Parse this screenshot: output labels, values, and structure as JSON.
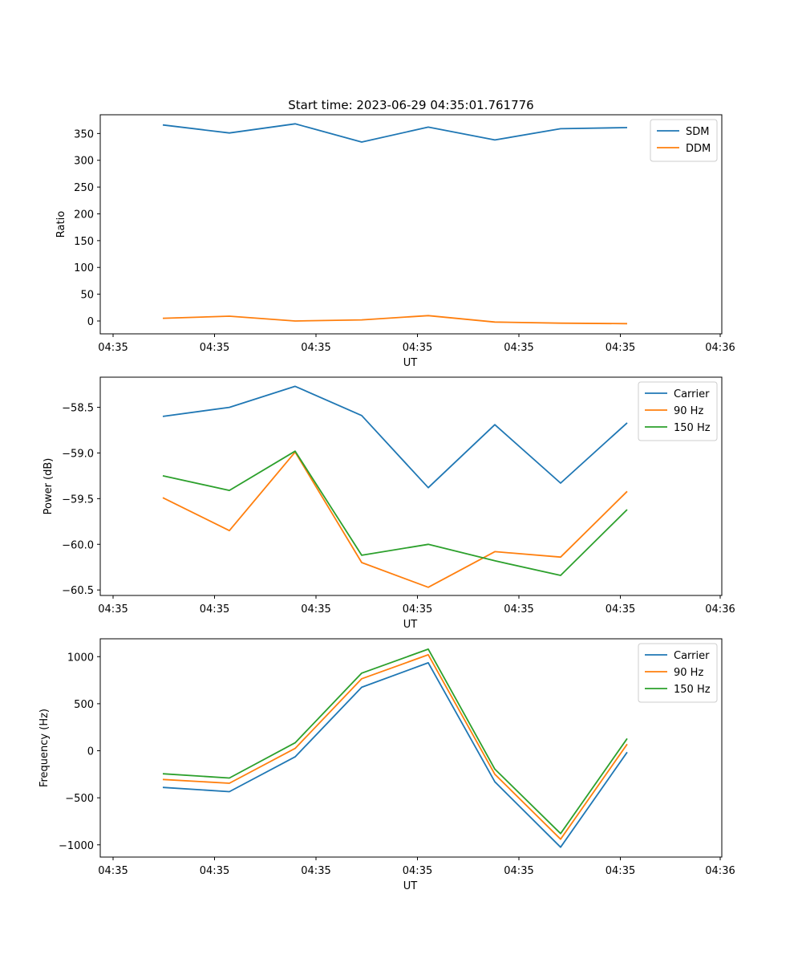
{
  "figure": {
    "title": "Start time: 2023-06-29 04:35:01.761776"
  },
  "chart_data": [
    {
      "type": "line",
      "title": "Start time: 2023-06-29 04:35:01.761776",
      "xlabel": "UT",
      "ylabel": "Ratio",
      "x_tick_labels": [
        "04:35",
        "04:35",
        "04:35",
        "04:35",
        "04:35",
        "04:35",
        "04:35",
        "04:35",
        "04:36"
      ],
      "yticks": [
        0,
        50,
        100,
        150,
        200,
        250,
        300,
        350
      ],
      "ylim": [
        -24,
        385
      ],
      "grid": false,
      "legend_position": "top-right",
      "series": [
        {
          "name": "SDM",
          "color": "#1f77b4",
          "values": [
            366,
            351,
            368,
            334,
            362,
            338,
            359,
            361
          ]
        },
        {
          "name": "DDM",
          "color": "#ff7f0e",
          "values": [
            5,
            9,
            0,
            2,
            10,
            -2,
            -4,
            -5
          ]
        }
      ]
    },
    {
      "type": "line",
      "xlabel": "UT",
      "ylabel": "Power (dB)",
      "x_tick_labels": [
        "04:35",
        "04:35",
        "04:35",
        "04:35",
        "04:35",
        "04:35",
        "04:35",
        "04:35",
        "04:36"
      ],
      "yticks": [
        -60.5,
        -60.0,
        -59.5,
        -59.0,
        -58.5
      ],
      "ytick_labels": [
        "−60.5",
        "−60.0",
        "−59.5",
        "−59.0",
        "−58.5"
      ],
      "ylim": [
        -60.56,
        -58.17
      ],
      "grid": false,
      "legend_position": "top-right",
      "series": [
        {
          "name": "Carrier",
          "color": "#1f77b4",
          "values": [
            -58.6,
            -58.5,
            -58.27,
            -58.59,
            -59.38,
            -58.69,
            -59.33,
            -58.67
          ]
        },
        {
          "name": "90 Hz",
          "color": "#ff7f0e",
          "values": [
            -59.49,
            -59.85,
            -58.99,
            -60.2,
            -60.47,
            -60.08,
            -60.14,
            -59.42
          ]
        },
        {
          "name": "150 Hz",
          "color": "#2ca02c",
          "values": [
            -59.25,
            -59.41,
            -58.98,
            -60.12,
            -60.0,
            -60.18,
            -60.34,
            -59.62
          ]
        }
      ]
    },
    {
      "type": "line",
      "xlabel": "UT",
      "ylabel": "Frequency (Hz)",
      "x_tick_labels": [
        "04:35",
        "04:35",
        "04:35",
        "04:35",
        "04:35",
        "04:35",
        "04:35",
        "04:35",
        "04:36"
      ],
      "yticks": [
        -1000,
        -500,
        0,
        500,
        1000
      ],
      "ytick_labels": [
        "−1000",
        "−500",
        "0",
        "500",
        "1000"
      ],
      "ylim": [
        -1130,
        1190
      ],
      "grid": false,
      "legend_position": "top-right",
      "series": [
        {
          "name": "Carrier",
          "color": "#1f77b4",
          "values": [
            -390,
            -435,
            -65,
            675,
            935,
            -330,
            -1025,
            -15
          ]
        },
        {
          "name": "90 Hz",
          "color": "#ff7f0e",
          "values": [
            -305,
            -345,
            25,
            765,
            1020,
            -250,
            -940,
            70
          ]
        },
        {
          "name": "150 Hz",
          "color": "#2ca02c",
          "values": [
            -245,
            -290,
            85,
            825,
            1080,
            -195,
            -880,
            130
          ]
        }
      ]
    }
  ]
}
